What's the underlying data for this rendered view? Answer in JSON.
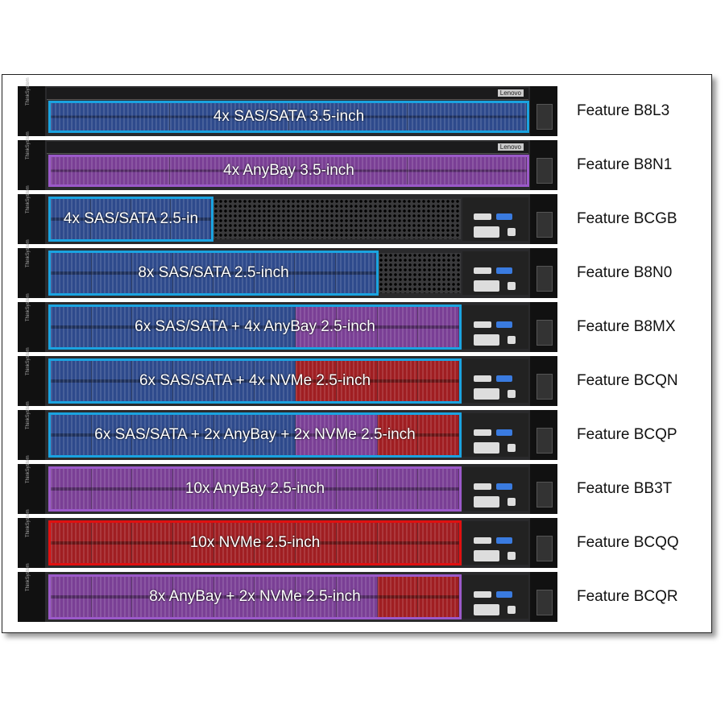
{
  "colors": {
    "sas_sata": "#2e4a8c",
    "anybay": "#7a3f95",
    "nvme": "#a01e22",
    "sas_sata_border": "#1aa3e0",
    "anybay_border": "#9b59c9",
    "nvme_border": "#e01010"
  },
  "chassis": {
    "brand": "ThinkSystem",
    "logo": "Lenovo"
  },
  "rows": [
    {
      "label": "4x SAS/SATA 3.5-inch",
      "feature": "Feature B8L3",
      "form": "3.5",
      "border": "sas_sata",
      "segments": [
        {
          "type": "sas_sata",
          "bays": 4
        }
      ]
    },
    {
      "label": "4x AnyBay 3.5-inch",
      "feature": "Feature B8N1",
      "form": "3.5",
      "border": "anybay",
      "segments": [
        {
          "type": "anybay",
          "bays": 4
        }
      ]
    },
    {
      "label": "4x SAS/SATA 2.5-in",
      "feature": "Feature BCGB",
      "form": "2.5",
      "border": "sas_sata",
      "segments": [
        {
          "type": "sas_sata",
          "bays": 4
        }
      ]
    },
    {
      "label": "8x SAS/SATA 2.5-inch",
      "feature": "Feature B8N0",
      "form": "2.5",
      "border": "sas_sata",
      "segments": [
        {
          "type": "sas_sata",
          "bays": 8
        }
      ]
    },
    {
      "label": "6x SAS/SATA + 4x AnyBay 2.5-inch",
      "feature": "Feature B8MX",
      "form": "2.5",
      "border": "sas_sata",
      "segments": [
        {
          "type": "sas_sata",
          "bays": 6
        },
        {
          "type": "anybay",
          "bays": 4
        }
      ]
    },
    {
      "label": "6x SAS/SATA + 4x NVMe 2.5-inch",
      "feature": "Feature BCQN",
      "form": "2.5",
      "border": "sas_sata",
      "segments": [
        {
          "type": "sas_sata",
          "bays": 6
        },
        {
          "type": "nvme",
          "bays": 4
        }
      ]
    },
    {
      "label": "6x SAS/SATA + 2x AnyBay + 2x NVMe 2.5-inch",
      "feature": "Feature BCQP",
      "form": "2.5",
      "border": "sas_sata",
      "segments": [
        {
          "type": "sas_sata",
          "bays": 6
        },
        {
          "type": "anybay",
          "bays": 2
        },
        {
          "type": "nvme",
          "bays": 2
        }
      ]
    },
    {
      "label": "10x AnyBay 2.5-inch",
      "feature": "Feature BB3T",
      "form": "2.5",
      "border": "anybay",
      "segments": [
        {
          "type": "anybay",
          "bays": 10
        }
      ]
    },
    {
      "label": "10x NVMe 2.5-inch",
      "feature": "Feature BCQQ",
      "form": "2.5",
      "border": "nvme",
      "segments": [
        {
          "type": "nvme",
          "bays": 10
        }
      ]
    },
    {
      "label": "8x AnyBay + 2x NVMe 2.5-inch",
      "feature": "Feature BCQR",
      "form": "2.5",
      "border": "anybay",
      "segments": [
        {
          "type": "anybay",
          "bays": 8
        },
        {
          "type": "nvme",
          "bays": 2
        }
      ]
    }
  ]
}
